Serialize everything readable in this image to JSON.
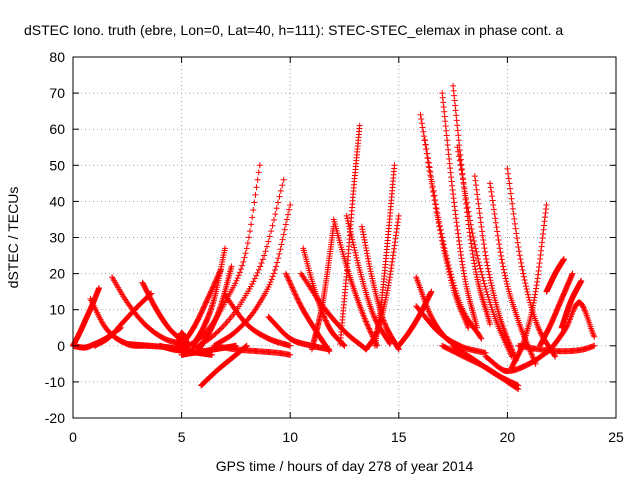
{
  "chart_data": {
    "type": "scatter",
    "title": "dSTEC Iono. truth (ebre, Lon=0, Lat=40, h=111): STEC-STEC_elemax in phase cont. a",
    "xlabel": "GPS time / hours of day 278 of year 2014",
    "ylabel": "dSTEC  / TECUs",
    "xlim": [
      0,
      25
    ],
    "ylim": [
      -20,
      80
    ],
    "x_ticks": [
      0,
      5,
      10,
      15,
      20,
      25
    ],
    "y_ticks": [
      -20,
      -10,
      0,
      10,
      20,
      30,
      40,
      50,
      60,
      70,
      80
    ],
    "grid": true,
    "marker": "+",
    "color": "#ff0000",
    "series": [
      {
        "x": [
          0.0,
          0.3,
          0.6,
          0.9,
          1.2
        ],
        "y": [
          0.0,
          3.5,
          7.5,
          11.5,
          16.0
        ]
      },
      {
        "x": [
          0.0,
          0.5,
          1.0,
          1.5,
          2.2
        ],
        "y": [
          0.0,
          -0.5,
          0.5,
          2.0,
          5.0
        ]
      },
      {
        "x": [
          0.8,
          1.5,
          2.5,
          3.5
        ],
        "y": [
          13.0,
          5.0,
          0.5,
          0.0
        ]
      },
      {
        "x": [
          1.0,
          1.7,
          2.3,
          3.0,
          3.6
        ],
        "y": [
          0.0,
          2.5,
          6.5,
          11.0,
          14.5
        ]
      },
      {
        "x": [
          1.8,
          2.5,
          3.3,
          4.2,
          5.0
        ],
        "y": [
          19.0,
          12.0,
          6.0,
          2.0,
          0.5
        ]
      },
      {
        "x": [
          2.5,
          3.5,
          4.5,
          5.3
        ],
        "y": [
          0.5,
          0.0,
          -0.5,
          -1.5
        ]
      },
      {
        "x": [
          3.2,
          3.8,
          4.4,
          5.0
        ],
        "y": [
          17.5,
          10.5,
          5.0,
          1.5
        ]
      },
      {
        "x": [
          4.0,
          4.6,
          5.2,
          5.8,
          6.4
        ],
        "y": [
          0.0,
          -1.0,
          -1.5,
          -2.0,
          -2.5
        ]
      },
      {
        "x": [
          4.8,
          5.0,
          5.3
        ],
        "y": [
          -1.0,
          3.5,
          0.0
        ]
      },
      {
        "x": [
          5.0,
          5.6,
          6.2,
          6.8
        ],
        "y": [
          0.0,
          5.5,
          13.0,
          21.0
        ]
      },
      {
        "x": [
          5.5,
          6.0,
          6.5,
          7.0
        ],
        "y": [
          0.0,
          5.0,
          13.0,
          27.0
        ]
      },
      {
        "x": [
          5.8,
          6.3,
          6.8,
          7.3
        ],
        "y": [
          -1.0,
          4.0,
          11.0,
          22.0
        ]
      },
      {
        "x": [
          5.9,
          6.6,
          7.4,
          8.0
        ],
        "y": [
          -11.0,
          -7.0,
          -3.0,
          0.0
        ]
      },
      {
        "x": [
          5.0,
          6.0,
          7.0,
          8.0,
          8.6
        ],
        "y": [
          -1.0,
          3.0,
          12.0,
          27.0,
          50.0
        ]
      },
      {
        "x": [
          5.3,
          6.5,
          7.7,
          8.8,
          9.7
        ],
        "y": [
          -1.5,
          3.0,
          11.5,
          25.0,
          46.0
        ]
      },
      {
        "x": [
          6.5,
          7.5,
          8.5,
          9.3,
          10.0
        ],
        "y": [
          0.0,
          4.0,
          11.0,
          21.0,
          39.0
        ]
      },
      {
        "x": [
          5.0,
          6.0,
          7.0,
          7.5
        ],
        "y": [
          -2.5,
          -1.5,
          -0.5,
          0.0
        ]
      },
      {
        "x": [
          7.0,
          8.0,
          9.0,
          10.0
        ],
        "y": [
          14.0,
          6.0,
          2.0,
          0.0
        ]
      },
      {
        "x": [
          6.5,
          7.5,
          8.5,
          9.5,
          10.0
        ],
        "y": [
          0.0,
          -1.0,
          -1.5,
          -2.0,
          -2.5
        ]
      },
      {
        "x": [
          9.8,
          10.5,
          11.2,
          11.8
        ],
        "y": [
          20.0,
          11.0,
          4.0,
          -1.5
        ]
      },
      {
        "x": [
          10.6,
          11.2,
          11.8,
          12.5
        ],
        "y": [
          27.0,
          14.0,
          5.0,
          0.0
        ]
      },
      {
        "x": [
          9.0,
          10.0,
          11.0,
          11.8
        ],
        "y": [
          8.0,
          2.0,
          0.0,
          -1.0
        ]
      },
      {
        "x": [
          11.0,
          11.5,
          12.0
        ],
        "y": [
          -1.0,
          12.0,
          33.0
        ]
      },
      {
        "x": [
          10.5,
          11.5,
          12.5,
          13.5
        ],
        "y": [
          20.0,
          11.0,
          4.0,
          -1.0
        ]
      },
      {
        "x": [
          12.3,
          12.6,
          12.9,
          13.2
        ],
        "y": [
          0.5,
          20.0,
          42.0,
          61.0
        ]
      },
      {
        "x": [
          12.0,
          12.7,
          13.4,
          14.0
        ],
        "y": [
          35.0,
          20.0,
          8.0,
          0.0
        ]
      },
      {
        "x": [
          12.6,
          13.2,
          13.8,
          14.6
        ],
        "y": [
          36.0,
          21.0,
          9.0,
          0.5
        ]
      },
      {
        "x": [
          13.3,
          13.8,
          14.3,
          15.0
        ],
        "y": [
          33.0,
          18.0,
          7.0,
          -1.0
        ]
      },
      {
        "x": [
          13.9,
          14.2,
          14.5,
          14.8
        ],
        "y": [
          0.0,
          12.0,
          30.0,
          50.0
        ]
      },
      {
        "x": [
          13.5,
          14.0,
          14.5,
          15.0
        ],
        "y": [
          -1.0,
          4.0,
          16.0,
          36.0
        ]
      },
      {
        "x": [
          15.0,
          15.5,
          16.0,
          16.5
        ],
        "y": [
          0.0,
          4.0,
          9.0,
          15.0
        ]
      },
      {
        "x": [
          15.8,
          16.5,
          17.2,
          17.8
        ],
        "y": [
          19.0,
          8.0,
          2.0,
          0.0
        ]
      },
      {
        "x": [
          16.0,
          16.8,
          17.5,
          18.2
        ],
        "y": [
          64.0,
          35.0,
          16.0,
          5.0
        ]
      },
      {
        "x": [
          16.2,
          17.0,
          17.8,
          18.8
        ],
        "y": [
          57.0,
          30.0,
          12.0,
          2.0
        ]
      },
      {
        "x": [
          17.0,
          17.5,
          18.0,
          18.6
        ],
        "y": [
          70.0,
          42.0,
          20.0,
          5.0
        ]
      },
      {
        "x": [
          17.5,
          18.0,
          18.5,
          19.2
        ],
        "y": [
          72.0,
          44.0,
          22.0,
          6.0
        ]
      },
      {
        "x": [
          17.7,
          18.5,
          19.3,
          20.2
        ],
        "y": [
          55.0,
          28.0,
          10.0,
          -3.0
        ]
      },
      {
        "x": [
          18.5,
          19.0,
          19.6,
          20.4
        ],
        "y": [
          47.0,
          25.0,
          9.0,
          -4.0
        ]
      },
      {
        "x": [
          19.2,
          19.8,
          20.5,
          21.3
        ],
        "y": [
          45.0,
          22.0,
          7.0,
          -5.0
        ]
      },
      {
        "x": [
          20.0,
          20.6,
          21.3,
          22.2
        ],
        "y": [
          49.0,
          24.0,
          7.0,
          -3.0
        ]
      },
      {
        "x": [
          17.0,
          18.0,
          19.0,
          20.5
        ],
        "y": [
          0.0,
          -3.0,
          -6.0,
          -12.0
        ]
      },
      {
        "x": [
          17.5,
          18.5,
          19.5,
          20.5
        ],
        "y": [
          0.0,
          -4.0,
          -8.0,
          -11.0
        ]
      },
      {
        "x": [
          15.8,
          16.8,
          17.8,
          19.0
        ],
        "y": [
          11.0,
          4.0,
          0.0,
          -2.0
        ]
      },
      {
        "x": [
          19.0,
          20.0,
          21.0,
          22.0
        ],
        "y": [
          -3.0,
          -7.0,
          -5.0,
          -1.0
        ]
      },
      {
        "x": [
          20.2,
          20.8,
          21.3,
          21.8
        ],
        "y": [
          -6.0,
          2.0,
          15.0,
          39.0
        ]
      },
      {
        "x": [
          21.5,
          22.0,
          22.5,
          23.0
        ],
        "y": [
          0.0,
          6.0,
          13.0,
          20.0
        ]
      },
      {
        "x": [
          21.8,
          22.2,
          22.6
        ],
        "y": [
          15.0,
          20.0,
          24.0
        ]
      },
      {
        "x": [
          22.0,
          22.7,
          23.3,
          24.0
        ],
        "y": [
          -1.0,
          5.0,
          12.0,
          2.5
        ]
      },
      {
        "x": [
          22.5,
          22.9,
          23.4
        ],
        "y": [
          5.0,
          12.0,
          18.0
        ]
      },
      {
        "x": [
          20.5,
          21.5,
          22.5,
          23.5,
          24.0
        ],
        "y": [
          0.0,
          -1.0,
          -1.5,
          -1.0,
          0.0
        ]
      }
    ]
  }
}
